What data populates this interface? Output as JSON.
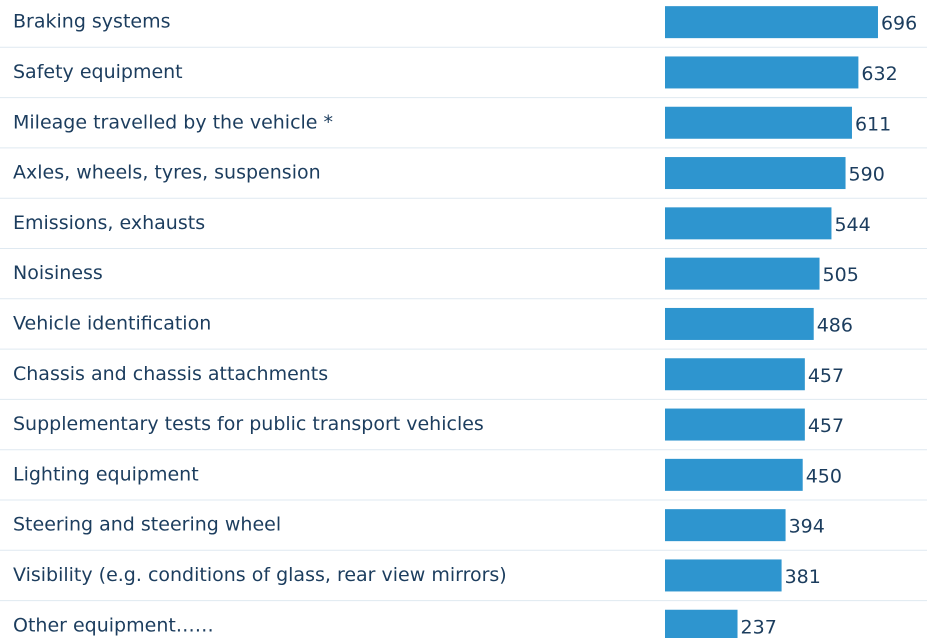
{
  "chart_data": {
    "type": "bar",
    "orientation": "horizontal",
    "color": "#2e95cf",
    "categories": [
      "Braking systems",
      "Safety equipment",
      "Mileage travelled by the vehicle *",
      "Axles, wheels, tyres, suspension",
      "Emissions, exhausts",
      "Noisiness",
      "Vehicle identification",
      "Chassis and chassis attachments",
      "Supplementary tests for public transport vehicles",
      "Lighting equipment",
      "Steering and steering wheel",
      "Visibility (e.g. conditions of glass, rear view mirrors)",
      "Other equipment……"
    ],
    "values": [
      696,
      632,
      611,
      590,
      544,
      505,
      486,
      457,
      457,
      450,
      394,
      381,
      237
    ]
  }
}
